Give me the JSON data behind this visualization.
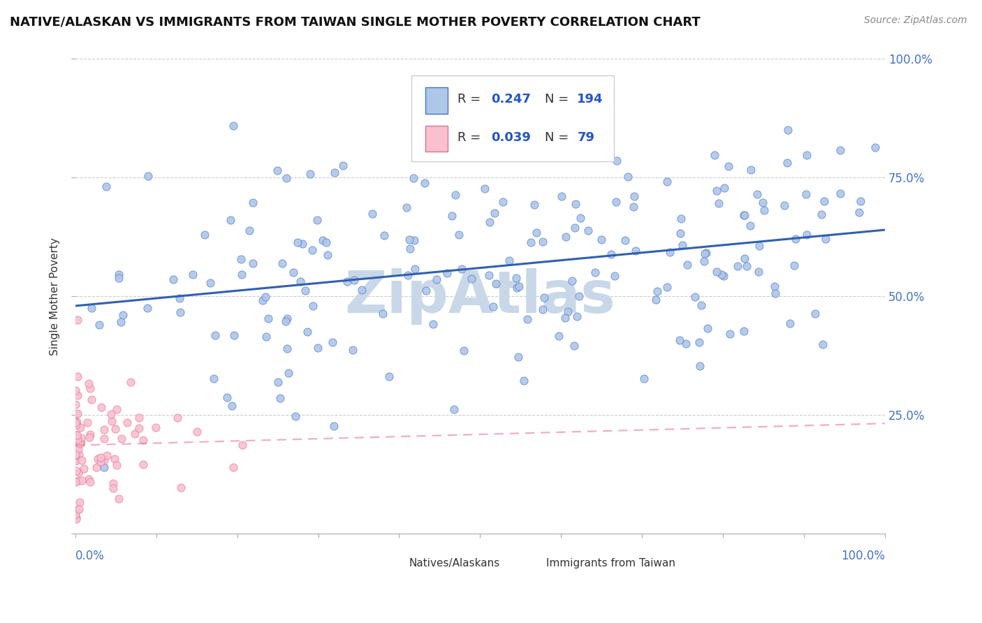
{
  "title": "NATIVE/ALASKAN VS IMMIGRANTS FROM TAIWAN SINGLE MOTHER POVERTY CORRELATION CHART",
  "source_text": "Source: ZipAtlas.com",
  "ylabel": "Single Mother Poverty",
  "series1_label": "Natives/Alaskans",
  "series1_R": 0.247,
  "series1_N": 194,
  "series1_dot_color": "#aec6e8",
  "series1_edge_color": "#4472c4",
  "series1_line_color": "#3060b0",
  "series2_label": "Immigrants from Taiwan",
  "series2_R": 0.039,
  "series2_N": 79,
  "series2_dot_color": "#f9c0d0",
  "series2_edge_color": "#e07090",
  "series2_line_color": "#e07090",
  "background_color": "#ffffff",
  "grid_color": "#cccccc",
  "watermark_text": "ZipAtlas",
  "watermark_color": "#c8d8e8",
  "title_fontsize": 13,
  "legend_R_color": "#2255cc",
  "axis_label_color": "#4472c4",
  "text_color": "#333333"
}
